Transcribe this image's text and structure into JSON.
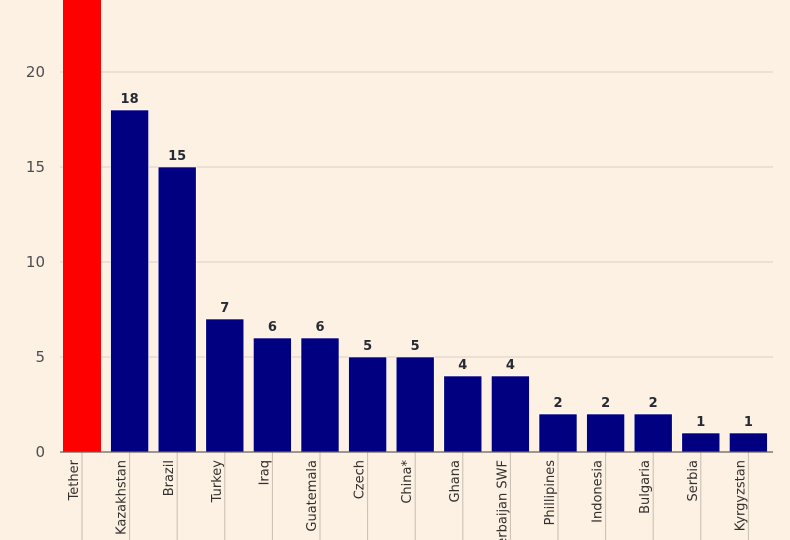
{
  "chart_data": {
    "type": "bar",
    "categories": [
      "Tether",
      "Kazakhstan",
      "Brazil",
      "Turkey",
      "Iraq",
      "Guatemala",
      "Czech",
      "China*",
      "Ghana",
      "Azerbaijan SWF",
      "Phillipines",
      "Indonesia",
      "Bulgaria",
      "Serbia",
      "Kyrgyzstan"
    ],
    "values": [
      24,
      18,
      15,
      7,
      6,
      6,
      5,
      5,
      4,
      4,
      2,
      2,
      2,
      1,
      1
    ],
    "value_labels": [
      "",
      "18",
      "15",
      "7",
      "6",
      "6",
      "5",
      "5",
      "4",
      "4",
      "2",
      "2",
      "2",
      "1",
      "1"
    ],
    "highlight_category": "Tether",
    "colors": {
      "highlight": "#ff0000",
      "default": "#000080",
      "grid": "#d9cec2",
      "axis": "#66605c",
      "background": "#fdf1e4"
    },
    "yticks": [
      0,
      5,
      10,
      15,
      20
    ],
    "ylim": [
      0,
      24
    ],
    "grid": true,
    "title": "",
    "xlabel": "",
    "ylabel": ""
  }
}
